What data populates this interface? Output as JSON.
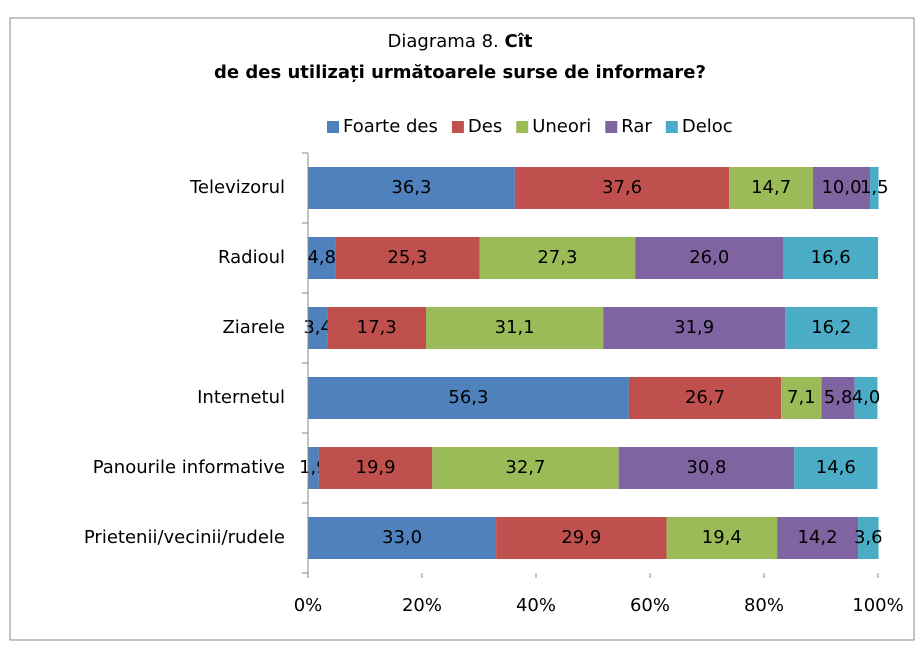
{
  "chart_data": {
    "type": "stacked-bar-horizontal",
    "title": [
      "Diagrama 8.",
      "Cît",
      "de des utilizați următoarele surse de informare?"
    ],
    "categories": [
      "Televizorul",
      "Radioul",
      "Ziarele",
      "Internetul",
      "Panourile informative",
      "Prietenii/vecinii/rudele"
    ],
    "series": [
      {
        "name": "Foarte des",
        "color": "#4f81bd",
        "values": [
          36.3,
          4.8,
          3.4,
          56.3,
          1.9,
          33.0
        ],
        "value_labels": [
          "36,3",
          "4,8",
          "3,4",
          "56,3",
          "1,9",
          "33,0"
        ]
      },
      {
        "name": "Des",
        "color": "#c0504d",
        "values": [
          37.6,
          25.3,
          17.3,
          26.7,
          19.9,
          29.9
        ],
        "value_labels": [
          "37,6",
          "25,3",
          "17,3",
          "26,7",
          "19,9",
          "29,9"
        ]
      },
      {
        "name": "Uneori",
        "color": "#9bbb59",
        "values": [
          14.7,
          27.3,
          31.1,
          7.1,
          32.7,
          19.4
        ],
        "value_labels": [
          "14,7",
          "27,3",
          "31,1",
          "7,1",
          "32,7",
          "19,4"
        ]
      },
      {
        "name": "Rar",
        "color": "#8064a2",
        "values": [
          10.0,
          26.0,
          31.9,
          5.8,
          30.8,
          14.2
        ],
        "value_labels": [
          "10,0",
          "26,0",
          "31,9",
          "5,8",
          "30,8",
          "14,2"
        ]
      },
      {
        "name": "Deloc",
        "color": "#4bacc6",
        "values": [
          1.5,
          16.6,
          16.2,
          4.0,
          14.6,
          3.6
        ],
        "value_labels": [
          "1,5",
          "16,6",
          "16,2",
          "4,0",
          "14,6",
          "3,6"
        ]
      }
    ],
    "xlim": [
      0,
      100
    ],
    "xticks": [
      {
        "value": 0,
        "label": "0%"
      },
      {
        "value": 20,
        "label": "20%"
      },
      {
        "value": 40,
        "label": "40%"
      },
      {
        "value": 60,
        "label": "60%"
      },
      {
        "value": 80,
        "label": "80%"
      },
      {
        "value": 100,
        "label": "100%"
      }
    ],
    "legend": "top"
  }
}
